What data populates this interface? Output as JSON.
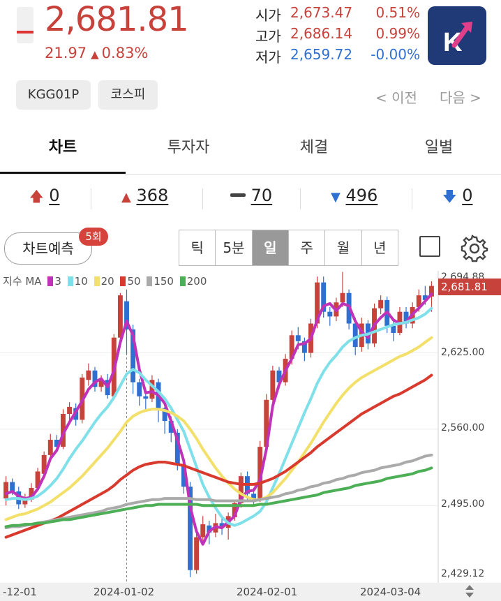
{
  "header": {
    "price": "2,681.81",
    "change_value": "21.97",
    "change_arrow": "▲",
    "change_pct": "0.83%",
    "open_label": "시가",
    "open_value": "2,673.47",
    "open_pct": "0.51%",
    "high_label": "고가",
    "high_value": "2,686.14",
    "high_pct": "0.99%",
    "low_label": "저가",
    "low_value": "2,659.72",
    "low_pct": "-0.00%",
    "logo_letter": "K"
  },
  "chips": [
    "KGG01P",
    "코스피"
  ],
  "nav": {
    "prev": "< 이전",
    "next": "다음 >"
  },
  "tabs": [
    "차트",
    "투자자",
    "체결",
    "일별"
  ],
  "counts": {
    "up_limit": "0",
    "up": "368",
    "flat": "70",
    "down": "496",
    "down_limit": "0"
  },
  "chart_controls": {
    "predict_label": "차트예측",
    "predict_badge": "5회",
    "periods": [
      "틱",
      "5분",
      "일",
      "주",
      "월",
      "년"
    ],
    "selected_period": "일"
  },
  "colors": {
    "up": "#c8423c",
    "down": "#2f6fd0",
    "ma3": "#c032b8",
    "ma10": "#7fe0ea",
    "ma20": "#f2e06a",
    "ma50": "#d93a2e",
    "ma150": "#aaaaaa",
    "ma200": "#4cae55"
  },
  "chart_data": {
    "type": "line",
    "legend": {
      "label": "지수 MA",
      "items": [
        "3",
        "10",
        "20",
        "50",
        "150",
        "200"
      ]
    },
    "y_ticks": [
      "2,694.88",
      "2,625.00",
      "2,560.00",
      "2,495.00",
      "2,429.12"
    ],
    "current_price_tag": "2,681.81",
    "x_ticks": [
      "-12-01",
      "2024-01-02",
      "2024-02-01",
      "2024-03-04"
    ],
    "ylim": [
      2429.12,
      2694.88
    ],
    "candles": [
      [
        2501,
        2515,
        2495,
        2520
      ],
      [
        2515,
        2507,
        2504,
        2518
      ],
      [
        2507,
        2496,
        2492,
        2511
      ],
      [
        2496,
        2500,
        2493,
        2505
      ],
      [
        2500,
        2510,
        2498,
        2514
      ],
      [
        2510,
        2524,
        2508,
        2527
      ],
      [
        2522,
        2538,
        2519,
        2541
      ],
      [
        2538,
        2551,
        2535,
        2556
      ],
      [
        2551,
        2545,
        2541,
        2555
      ],
      [
        2545,
        2573,
        2543,
        2577
      ],
      [
        2573,
        2579,
        2568,
        2583
      ],
      [
        2578,
        2568,
        2563,
        2582
      ],
      [
        2568,
        2604,
        2565,
        2607
      ],
      [
        2602,
        2610,
        2597,
        2616
      ],
      [
        2610,
        2596,
        2592,
        2613
      ],
      [
        2596,
        2602,
        2592,
        2606
      ],
      [
        2602,
        2589,
        2586,
        2607
      ],
      [
        2588,
        2638,
        2585,
        2641
      ],
      [
        2638,
        2674,
        2632,
        2676
      ],
      [
        2669,
        2645,
        2624,
        2679
      ],
      [
        2645,
        2600,
        2590,
        2649
      ],
      [
        2600,
        2588,
        2580,
        2603
      ],
      [
        2588,
        2586,
        2576,
        2590
      ],
      [
        2586,
        2602,
        2583,
        2606
      ],
      [
        2600,
        2578,
        2566,
        2603
      ],
      [
        2578,
        2567,
        2556,
        2580
      ],
      [
        2567,
        2557,
        2549,
        2571
      ],
      [
        2557,
        2530,
        2525,
        2560
      ],
      [
        2530,
        2511,
        2505,
        2534
      ],
      [
        2511,
        2440,
        2434,
        2515
      ],
      [
        2440,
        2468,
        2437,
        2472
      ],
      [
        2468,
        2479,
        2465,
        2486
      ],
      [
        2478,
        2472,
        2462,
        2482
      ],
      [
        2472,
        2480,
        2468,
        2488
      ],
      [
        2480,
        2476,
        2470,
        2484
      ],
      [
        2476,
        2486,
        2466,
        2489
      ],
      [
        2485,
        2497,
        2482,
        2500
      ],
      [
        2497,
        2520,
        2493,
        2523
      ],
      [
        2520,
        2505,
        2500,
        2524
      ],
      [
        2505,
        2500,
        2496,
        2510
      ],
      [
        2500,
        2545,
        2498,
        2550
      ],
      [
        2545,
        2585,
        2540,
        2590
      ],
      [
        2585,
        2610,
        2580,
        2614
      ],
      [
        2610,
        2600,
        2594,
        2613
      ],
      [
        2600,
        2620,
        2597,
        2624
      ],
      [
        2620,
        2640,
        2615,
        2644
      ],
      [
        2640,
        2635,
        2628,
        2647
      ],
      [
        2635,
        2625,
        2618,
        2638
      ],
      [
        2625,
        2650,
        2621,
        2654
      ],
      [
        2650,
        2685,
        2646,
        2690
      ],
      [
        2685,
        2660,
        2655,
        2690
      ],
      [
        2660,
        2656,
        2648,
        2664
      ],
      [
        2656,
        2668,
        2652,
        2672
      ],
      [
        2668,
        2676,
        2664,
        2694
      ],
      [
        2676,
        2650,
        2645,
        2679
      ],
      [
        2650,
        2630,
        2623,
        2655
      ],
      [
        2630,
        2650,
        2626,
        2655
      ],
      [
        2650,
        2633,
        2628,
        2653
      ],
      [
        2633,
        2663,
        2630,
        2667
      ],
      [
        2663,
        2670,
        2658,
        2674
      ],
      [
        2670,
        2648,
        2642,
        2673
      ],
      [
        2648,
        2642,
        2635,
        2652
      ],
      [
        2642,
        2660,
        2640,
        2664
      ],
      [
        2660,
        2650,
        2646,
        2664
      ],
      [
        2650,
        2664,
        2646,
        2668
      ],
      [
        2664,
        2674,
        2660,
        2679
      ],
      [
        2674,
        2670,
        2666,
        2682
      ],
      [
        2673,
        2682,
        2660,
        2686
      ]
    ],
    "series": [
      {
        "name": "3",
        "values": [
          2505,
          2507,
          2503,
          2501,
          2502,
          2509,
          2520,
          2535,
          2542,
          2556,
          2566,
          2575,
          2584,
          2594,
          2600,
          2603,
          2596,
          2610,
          2634,
          2652,
          2640,
          2611,
          2591,
          2592,
          2589,
          2582,
          2567,
          2551,
          2533,
          2494,
          2473,
          2462,
          2473,
          2477,
          2476,
          2481,
          2486,
          2501,
          2507,
          2508,
          2517,
          2543,
          2580,
          2598,
          2610,
          2620,
          2632,
          2633,
          2637,
          2653,
          2665,
          2667,
          2661,
          2667,
          2665,
          2652,
          2643,
          2638,
          2649,
          2655,
          2660,
          2653,
          2650,
          2651,
          2658,
          2663,
          2669,
          2675
        ]
      },
      {
        "name": "10",
        "values": [
          2500,
          2501,
          2501,
          2500,
          2501,
          2503,
          2507,
          2512,
          2518,
          2526,
          2535,
          2543,
          2550,
          2558,
          2566,
          2573,
          2579,
          2587,
          2597,
          2607,
          2611,
          2608,
          2602,
          2597,
          2592,
          2586,
          2578,
          2568,
          2558,
          2543,
          2528,
          2513,
          2502,
          2493,
          2485,
          2480,
          2478,
          2480,
          2483,
          2486,
          2490,
          2498,
          2510,
          2522,
          2535,
          2548,
          2561,
          2574,
          2586,
          2599,
          2609,
          2617,
          2623,
          2630,
          2635,
          2638,
          2640,
          2641,
          2643,
          2645,
          2647,
          2649,
          2650,
          2651,
          2653,
          2655,
          2658,
          2663
        ]
      },
      {
        "name": "20",
        "values": [
          2483,
          2485,
          2487,
          2488,
          2490,
          2492,
          2495,
          2498,
          2502,
          2506,
          2510,
          2515,
          2520,
          2526,
          2532,
          2538,
          2544,
          2551,
          2558,
          2566,
          2571,
          2574,
          2576,
          2577,
          2577,
          2576,
          2574,
          2571,
          2567,
          2560,
          2552,
          2543,
          2535,
          2527,
          2520,
          2514,
          2509,
          2505,
          2502,
          2500,
          2500,
          2502,
          2506,
          2512,
          2518,
          2525,
          2532,
          2540,
          2548,
          2557,
          2566,
          2574,
          2582,
          2589,
          2595,
          2600,
          2604,
          2607,
          2610,
          2613,
          2616,
          2619,
          2622,
          2624,
          2627,
          2630,
          2634,
          2638
        ]
      },
      {
        "name": "50",
        "values": [
          2468,
          2470,
          2472,
          2474,
          2476,
          2478,
          2480,
          2482,
          2484,
          2487,
          2490,
          2493,
          2496,
          2499,
          2502,
          2505,
          2508,
          2512,
          2517,
          2521,
          2525,
          2528,
          2530,
          2531,
          2532,
          2532,
          2531,
          2530,
          2529,
          2527,
          2525,
          2523,
          2521,
          2519,
          2517,
          2515,
          2514,
          2513,
          2513,
          2513,
          2514,
          2516,
          2518,
          2521,
          2524,
          2528,
          2532,
          2536,
          2540,
          2545,
          2549,
          2553,
          2557,
          2561,
          2565,
          2569,
          2573,
          2576,
          2579,
          2582,
          2585,
          2588,
          2590,
          2593,
          2596,
          2599,
          2602,
          2606
        ]
      },
      {
        "name": "150",
        "values": [
          2476,
          2477,
          2477,
          2478,
          2479,
          2480,
          2481,
          2482,
          2483,
          2484,
          2485,
          2486,
          2487,
          2488,
          2489,
          2490,
          2492,
          2493,
          2494,
          2496,
          2497,
          2498,
          2499,
          2500,
          2500,
          2501,
          2501,
          2501,
          2501,
          2501,
          2500,
          2500,
          2500,
          2499,
          2499,
          2499,
          2499,
          2499,
          2499,
          2499,
          2500,
          2501,
          2502,
          2503,
          2505,
          2506,
          2508,
          2509,
          2511,
          2512,
          2514,
          2515,
          2517,
          2518,
          2520,
          2521,
          2523,
          2524,
          2525,
          2527,
          2528,
          2529,
          2530,
          2532,
          2533,
          2535,
          2537,
          2538
        ]
      },
      {
        "name": "200",
        "values": [
          2477,
          2478,
          2478,
          2479,
          2479,
          2480,
          2480,
          2481,
          2482,
          2483,
          2483,
          2484,
          2485,
          2486,
          2487,
          2488,
          2489,
          2490,
          2491,
          2492,
          2493,
          2494,
          2495,
          2495,
          2496,
          2496,
          2496,
          2496,
          2496,
          2496,
          2496,
          2495,
          2495,
          2495,
          2495,
          2495,
          2495,
          2495,
          2495,
          2495,
          2496,
          2496,
          2497,
          2498,
          2499,
          2500,
          2501,
          2502,
          2503,
          2504,
          2506,
          2507,
          2508,
          2509,
          2510,
          2512,
          2513,
          2514,
          2515,
          2516,
          2518,
          2519,
          2520,
          2521,
          2522,
          2524,
          2525,
          2527
        ]
      }
    ]
  }
}
